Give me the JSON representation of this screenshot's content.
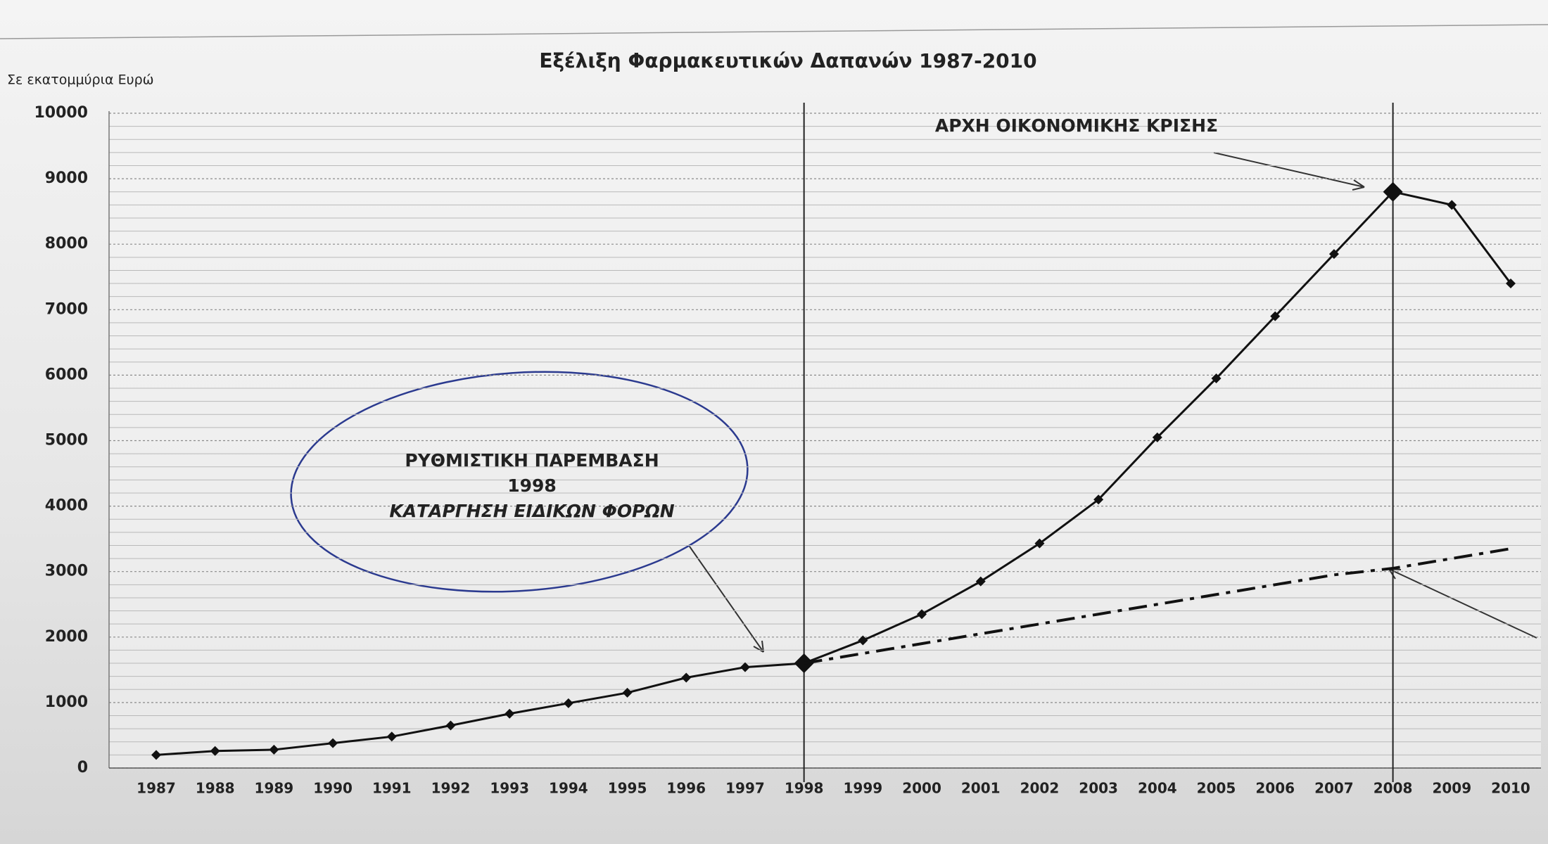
{
  "chart_data": {
    "type": "line",
    "title": "Εξέλιξη Φαρμακευτικών Δαπανών 1987-2010",
    "y_label": "Σε εκατομμύρια Ευρώ",
    "categories": [
      "1987",
      "1988",
      "1989",
      "1990",
      "1991",
      "1992",
      "1993",
      "1994",
      "1995",
      "1996",
      "1997",
      "1998",
      "1999",
      "2000",
      "2001",
      "2002",
      "2003",
      "2004",
      "2005",
      "2006",
      "2007",
      "2008",
      "2009",
      "2010"
    ],
    "series": [
      {
        "color": "#111111",
        "style": "solid",
        "values": [
          200,
          260,
          280,
          380,
          480,
          650,
          830,
          990,
          1150,
          1380,
          1540,
          1600,
          1950,
          2350,
          2850,
          3430,
          4100,
          5050,
          5950,
          6900,
          7850,
          8800,
          8600,
          7400
        ]
      },
      {
        "color": "#111111",
        "style": "dashdot",
        "values": [
          null,
          null,
          null,
          null,
          null,
          null,
          null,
          null,
          null,
          null,
          null,
          1600,
          1750,
          1900,
          2050,
          2200,
          2350,
          2500,
          2650,
          2800,
          2950,
          3050,
          3200,
          3350
        ]
      }
    ],
    "ylim": [
      0,
      10000
    ],
    "yticks": [
      0,
      1000,
      2000,
      3000,
      4000,
      5000,
      6000,
      7000,
      8000,
      9000,
      10000
    ],
    "grid": true,
    "vlines": [
      "1998",
      "2008"
    ],
    "annotations": [
      {
        "lines": [
          "ΡΥΘΜΙΣΤΙΚΗ ΠΑΡΕΜΒΑΣΗ",
          "1998",
          "ΚΑΤΑΡΓΗΣΗ ΕΙΔΙΚΩΝ ΦΟΡΩΝ"
        ]
      },
      {
        "lines": [
          "ΑΡΧΗ ΟΙΚΟΝΟΜΙΚΗΣ ΚΡΙΣΗΣ"
        ]
      }
    ]
  }
}
